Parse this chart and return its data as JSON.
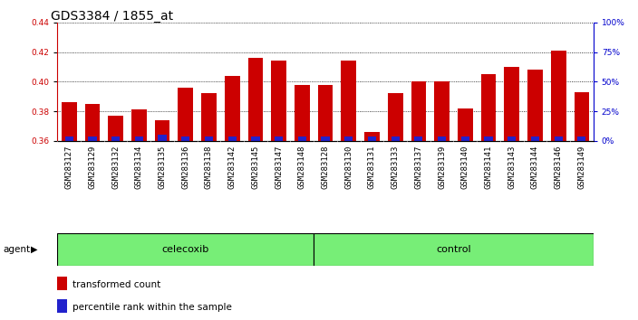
{
  "title": "GDS3384 / 1855_at",
  "samples": [
    "GSM283127",
    "GSM283129",
    "GSM283132",
    "GSM283134",
    "GSM283135",
    "GSM283136",
    "GSM283138",
    "GSM283142",
    "GSM283145",
    "GSM283147",
    "GSM283148",
    "GSM283128",
    "GSM283130",
    "GSM283131",
    "GSM283133",
    "GSM283137",
    "GSM283139",
    "GSM283140",
    "GSM283141",
    "GSM283143",
    "GSM283144",
    "GSM283146",
    "GSM283149"
  ],
  "red_values": [
    0.386,
    0.385,
    0.377,
    0.381,
    0.374,
    0.396,
    0.392,
    0.404,
    0.416,
    0.414,
    0.398,
    0.398,
    0.414,
    0.366,
    0.392,
    0.4,
    0.4,
    0.382,
    0.405,
    0.41,
    0.408,
    0.421,
    0.393
  ],
  "blue_values": [
    0.003,
    0.003,
    0.003,
    0.003,
    0.004,
    0.003,
    0.003,
    0.003,
    0.003,
    0.003,
    0.003,
    0.003,
    0.003,
    0.003,
    0.003,
    0.003,
    0.003,
    0.003,
    0.003,
    0.003,
    0.003,
    0.003,
    0.003
  ],
  "y_min": 0.36,
  "y_max": 0.44,
  "y_ticks": [
    0.36,
    0.38,
    0.4,
    0.42,
    0.44
  ],
  "right_y_ticks": [
    0,
    25,
    50,
    75,
    100
  ],
  "right_y_labels": [
    "0",
    "25",
    "50",
    "75",
    "100%"
  ],
  "celecoxib_count": 11,
  "control_count": 12,
  "bar_color_red": "#CC0000",
  "bar_color_blue": "#2222CC",
  "bar_width": 0.65,
  "group_celecoxib_label": "celecoxib",
  "group_control_label": "control",
  "group_bg_color": "#77EE77",
  "agent_label": "agent",
  "legend_red": "transformed count",
  "legend_blue": "percentile rank within the sample",
  "title_fontsize": 10,
  "tick_fontsize": 6.5,
  "left_axis_color": "#CC0000",
  "right_axis_color": "#0000CC"
}
